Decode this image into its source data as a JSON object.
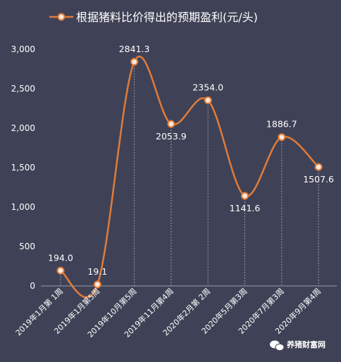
{
  "chart_data": {
    "type": "line",
    "title": "根据猪料比价得出的预期盈利(元/头)",
    "legend_position": "top",
    "series": [
      {
        "name": "根据猪料比价得出的预期盈利(元/头)",
        "values": [
          194.0,
          19.1,
          2841.3,
          2053.9,
          2354.0,
          1141.6,
          1886.7,
          1507.6
        ]
      }
    ],
    "categories": [
      "2019年1月第 1周",
      "2019年1月第5周",
      "2019年10月第5周",
      "2019年11月第4周",
      "2020年2月第 2周",
      "2020年5月第3周",
      "2020年7月第3周",
      "2020年9月第4周"
    ],
    "data_labels": [
      "194.0",
      "19.1",
      "2841.3",
      "2053.9",
      "2354.0",
      "1141.6",
      "1886.7",
      "1507.6"
    ],
    "yticks": [
      "0",
      "500",
      "1,000",
      "1,500",
      "2,000",
      "2,500",
      "3,000"
    ],
    "ylim": [
      0,
      3000
    ],
    "grid": false,
    "colors": {
      "line": "#e07b39",
      "marker_fill": "#fde8d8",
      "background": "#3f4256",
      "drop_line": "#9a9cab"
    }
  },
  "watermark": {
    "text": "养猪财富网",
    "icon": "wechat-icon"
  }
}
